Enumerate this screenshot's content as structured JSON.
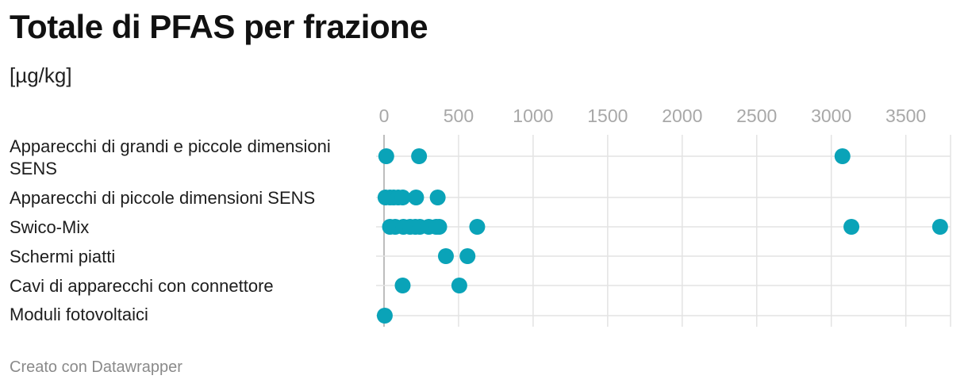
{
  "title": "Totale di PFAS per frazione",
  "subtitle": "[µg/kg]",
  "footer": "Creato con Datawrapper",
  "colors": {
    "dot": "#0aa3b8",
    "grid": "#e3e3e3",
    "tick": "#a8a8a8"
  },
  "chart_data": {
    "type": "scatter",
    "title": "Totale di PFAS per frazione",
    "subtitle": "[µg/kg]",
    "xlim": [
      0,
      3800
    ],
    "x_ticks": [
      0,
      500,
      1000,
      1500,
      2000,
      2500,
      3000,
      3500
    ],
    "grid": true,
    "legend": "none",
    "categories": [
      {
        "label_lines": [
          "Apparecchi di grandi e piccole dimensioni",
          "SENS"
        ],
        "values": [
          15,
          235,
          3075
        ]
      },
      {
        "label_lines": [
          "Apparecchi di piccole dimensioni SENS"
        ],
        "values": [
          10,
          40,
          65,
          95,
          125,
          215,
          360
        ]
      },
      {
        "label_lines": [
          "Swico-Mix"
        ],
        "values": [
          40,
          75,
          130,
          175,
          210,
          240,
          300,
          350,
          370,
          625,
          3135,
          3730
        ]
      },
      {
        "label_lines": [
          "Schermi piatti"
        ],
        "values": [
          415,
          560
        ]
      },
      {
        "label_lines": [
          "Cavi di apparecchi con connettore"
        ],
        "values": [
          125,
          505
        ]
      },
      {
        "label_lines": [
          "Moduli fotovoltaici"
        ],
        "values": [
          5
        ]
      }
    ]
  }
}
